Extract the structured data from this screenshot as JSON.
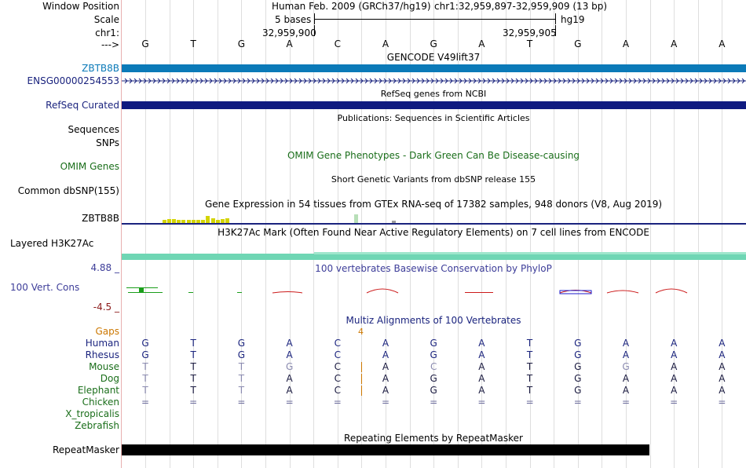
{
  "colors": {
    "gencode": "#0b7ab8",
    "refseq": "#0f1a80",
    "omim": "#1a6e1a",
    "navy": "#1a237e",
    "purple_label": "#3d3d99",
    "maroon": "#8b1a1a",
    "gaps": "#cc7700",
    "phylo_pos": "#1a9e1a",
    "phylo_neg": "#cc1a1a",
    "phylo_blue": "#1a1acc",
    "h3k": "#6fd6b4",
    "gtex": "#d4d400",
    "gtex_green": "#b7dfb7",
    "gtex_gray": "#9c9c9c",
    "repeat": "#000000"
  },
  "header": {
    "window_position_label": "Window Position",
    "scale_label": "Scale",
    "chrom_label": "chr1:",
    "strand_arrow_label": "--->",
    "assembly_text": "Human Feb. 2009 (GRCh37/hg19)",
    "position_text": "chr1:32,959,897-32,959,909 (13 bp)",
    "scale_text": "5 bases",
    "scale_db": "hg19",
    "coord_left": "32,959,900",
    "coord_right": "32,959,905"
  },
  "sequence": [
    "G",
    "T",
    "G",
    "A",
    "C",
    "A",
    "G",
    "A",
    "T",
    "G",
    "A",
    "A",
    "A"
  ],
  "tracks": {
    "gencode_title": "GENCODE V49lift37",
    "gencode_gene": "ZBTB8B",
    "gencode_transcript": "ENSG00000254553",
    "refseq_title": "RefSeq genes from NCBI",
    "refseq_label": "RefSeq Curated",
    "pubs_title": "Publications: Sequences in Scientific Articles",
    "pubs_label": "Sequences",
    "snps_label": "SNPs",
    "omim_title": "OMIM Gene Phenotypes - Dark Green Can Be Disease-causing",
    "omim_label": "OMIM Genes",
    "dbsnp_title": "Short Genetic Variants from dbSNP release 155",
    "dbsnp_label": "Common dbSNP(155)",
    "gtex_title": "Gene Expression in 54 tissues from GTEx RNA-seq of 17382 samples, 948 donors (V8, Aug 2019)",
    "gtex_label": "ZBTB8B",
    "h3k_title": "H3K27Ac Mark (Often Found Near Active Regulatory Elements) on 7 cell lines from ENCODE",
    "h3k_label": "Layered H3K27Ac",
    "phylo_title": "100 vertebrates Basewise Conservation by PhyloP",
    "phylo_label": "100 Vert. Cons",
    "phylo_max": "4.88 _",
    "phylo_min": "-4.5 _",
    "multiz_title": "Multiz Alignments of 100 Vertebrates",
    "gaps_label": "Gaps",
    "gaps_value": "4",
    "repeat_title": "Repeating Elements by RepeatMasker",
    "repeat_label": "RepeatMasker"
  },
  "gtex_values": [
    0,
    0,
    0,
    0,
    0,
    0,
    0,
    0,
    4,
    5,
    5,
    4,
    4,
    4,
    4,
    4,
    4,
    9,
    6,
    4,
    5,
    6
  ],
  "gtex_extra": {
    "green_value": 11,
    "gray_value": 3
  },
  "alignment": {
    "species": [
      {
        "name": "Human",
        "bases": [
          "G",
          "T",
          "G",
          "A",
          "C",
          "A",
          "G",
          "A",
          "T",
          "G",
          "A",
          "A",
          "A"
        ]
      },
      {
        "name": "Rhesus",
        "bases": [
          "G",
          "T",
          "G",
          "A",
          "C",
          "A",
          "G",
          "A",
          "T",
          "G",
          "A",
          "A",
          "A"
        ]
      },
      {
        "name": "Mouse",
        "bases": [
          "T",
          "T",
          "T",
          "G",
          "C",
          "A",
          "C",
          "A",
          "T",
          "G",
          "G",
          "A",
          "A"
        ]
      },
      {
        "name": "Dog",
        "bases": [
          "T",
          "T",
          "T",
          "A",
          "C",
          "A",
          "G",
          "A",
          "T",
          "G",
          "A",
          "A",
          "A"
        ]
      },
      {
        "name": "Elephant",
        "bases": [
          "T",
          "T",
          "T",
          "A",
          "C",
          "A",
          "G",
          "A",
          "T",
          "G",
          "A",
          "A",
          "A"
        ]
      },
      {
        "name": "Chicken",
        "bases": [
          "=",
          "=",
          "=",
          "=",
          "=",
          "=",
          "=",
          "=",
          "=",
          "=",
          "=",
          "=",
          "="
        ]
      },
      {
        "name": "X_tropicalis",
        "bases": []
      },
      {
        "name": "Zebrafish",
        "bases": []
      }
    ]
  }
}
